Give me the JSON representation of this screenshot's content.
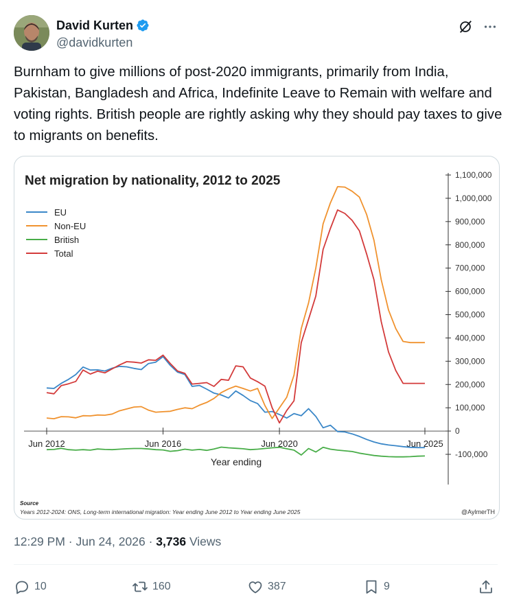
{
  "author": {
    "display_name": "David Kurten",
    "handle": "@davidkurten",
    "verified_color": "#1d9bf0"
  },
  "post": {
    "text": "Burnham to give millions of post-2020 immigrants, primarily from India, Pakistan, Bangladesh and Africa, Indefinite Leave to Remain with welfare and voting rights. British people are rightly asking why they should pay taxes to give to migrants on benefits."
  },
  "meta": {
    "time": "12:29 PM",
    "sep1": "·",
    "date": "Jun 24, 2026",
    "sep2": "·",
    "views_count": "3,736",
    "views_label": "Views"
  },
  "actions": {
    "replies": "10",
    "reposts": "160",
    "likes": "387",
    "bookmarks": "9"
  },
  "icons": [
    "verified-badge-icon",
    "grok-icon",
    "more-icon",
    "reply-icon",
    "repost-icon",
    "like-icon",
    "bookmark-icon",
    "share-icon"
  ],
  "chart_data": {
    "type": "line",
    "title": "Net migration by nationality, 2012 to 2025",
    "xlabel": "Year ending",
    "ylabel": "",
    "ylim": [
      -100000,
      1100000
    ],
    "y_ticks": [
      -100000,
      0,
      100000,
      200000,
      300000,
      400000,
      500000,
      600000,
      700000,
      800000,
      900000,
      1000000,
      1100000
    ],
    "y_tick_labels": [
      "-100,000",
      "0",
      "100,000",
      "200,000",
      "300,000",
      "400,000",
      "500,000",
      "600,000",
      "700,000",
      "800,000",
      "900,000",
      "1,000,000",
      "1,100,000"
    ],
    "x_ticks": [
      2012.5,
      2016.5,
      2020.5,
      2025.5
    ],
    "x_tick_labels": [
      "Jun 2012",
      "Jun 2016",
      "Jun 2020",
      "Jun 2025"
    ],
    "x_range": [
      2012.5,
      2025.5
    ],
    "grid": false,
    "legend_position": "top-left",
    "source_heading": "Source",
    "source_text": "Years 2012-2024: ONS, Long-term international migration: Year ending June 2012 to Year ending June 2025",
    "credit": "@AylmerTH",
    "series": [
      {
        "name": "EU",
        "color": "#3a87c8",
        "x": [
          2012.5,
          2012.75,
          2013.0,
          2013.25,
          2013.5,
          2013.75,
          2014.0,
          2014.25,
          2014.5,
          2014.75,
          2015.0,
          2015.25,
          2015.5,
          2015.75,
          2016.0,
          2016.25,
          2016.5,
          2016.75,
          2017.0,
          2017.25,
          2017.5,
          2017.75,
          2018.0,
          2018.25,
          2018.5,
          2018.75,
          2019.0,
          2019.25,
          2019.5,
          2019.75,
          2020.0,
          2020.25,
          2020.5,
          2020.75,
          2021.0,
          2021.25,
          2021.5,
          2021.75,
          2022.0,
          2022.25,
          2022.5,
          2022.75,
          2023.0,
          2023.25,
          2023.5,
          2023.75,
          2024.0,
          2024.25,
          2024.5,
          2024.75,
          2025.0,
          2025.25,
          2025.5
        ],
        "y": [
          185000,
          183000,
          205000,
          222000,
          243000,
          275000,
          262000,
          263000,
          258000,
          270000,
          278000,
          276000,
          269000,
          264000,
          290000,
          296000,
          320000,
          282000,
          253000,
          243000,
          192000,
          196000,
          180000,
          163000,
          155000,
          142000,
          172000,
          153000,
          131000,
          118000,
          81000,
          84000,
          71000,
          56000,
          75000,
          66000,
          96000,
          63000,
          14000,
          25000,
          -2000,
          -4000,
          -12000,
          -23000,
          -36000,
          -47000,
          -55000,
          -60000,
          -63000,
          -67000,
          -70000,
          -71000,
          -71000
        ]
      },
      {
        "name": "Non-EU",
        "color": "#f0922e",
        "x": [
          2012.5,
          2012.75,
          2013.0,
          2013.25,
          2013.5,
          2013.75,
          2014.0,
          2014.25,
          2014.5,
          2014.75,
          2015.0,
          2015.25,
          2015.5,
          2015.75,
          2016.0,
          2016.25,
          2016.5,
          2016.75,
          2017.0,
          2017.25,
          2017.5,
          2017.75,
          2018.0,
          2018.25,
          2018.5,
          2018.75,
          2019.0,
          2019.25,
          2019.5,
          2019.75,
          2020.0,
          2020.25,
          2020.5,
          2020.75,
          2021.0,
          2021.25,
          2021.5,
          2021.75,
          2022.0,
          2022.25,
          2022.5,
          2022.75,
          2023.0,
          2023.25,
          2023.5,
          2023.75,
          2024.0,
          2024.25,
          2024.5,
          2024.75,
          2025.0,
          2025.25,
          2025.5
        ],
        "y": [
          56000,
          53000,
          62000,
          61000,
          57000,
          66000,
          65000,
          69000,
          68000,
          73000,
          87000,
          95000,
          103000,
          105000,
          90000,
          81000,
          83000,
          85000,
          93000,
          100000,
          96000,
          111000,
          123000,
          140000,
          165000,
          181000,
          193000,
          183000,
          172000,
          183000,
          110000,
          54000,
          100000,
          145000,
          240000,
          440000,
          550000,
          700000,
          890000,
          980000,
          1050000,
          1048000,
          1030000,
          1005000,
          930000,
          820000,
          650000,
          520000,
          440000,
          385000,
          380000,
          380000,
          380000
        ]
      },
      {
        "name": "British",
        "color": "#48ad48",
        "x": [
          2012.5,
          2012.75,
          2013.0,
          2013.25,
          2013.5,
          2013.75,
          2014.0,
          2014.25,
          2014.5,
          2014.75,
          2015.0,
          2015.25,
          2015.5,
          2015.75,
          2016.0,
          2016.25,
          2016.5,
          2016.75,
          2017.0,
          2017.25,
          2017.5,
          2017.75,
          2018.0,
          2018.25,
          2018.5,
          2018.75,
          2019.0,
          2019.25,
          2019.5,
          2019.75,
          2020.0,
          2020.25,
          2020.5,
          2020.75,
          2021.0,
          2021.25,
          2021.5,
          2021.75,
          2022.0,
          2022.25,
          2022.5,
          2022.75,
          2023.0,
          2023.25,
          2023.5,
          2023.75,
          2024.0,
          2024.25,
          2024.5,
          2024.75,
          2025.0,
          2025.25,
          2025.5
        ],
        "y": [
          -80000,
          -79000,
          -74000,
          -80000,
          -82000,
          -80000,
          -82000,
          -77000,
          -79000,
          -80000,
          -78000,
          -76000,
          -75000,
          -75000,
          -77000,
          -80000,
          -81000,
          -87000,
          -84000,
          -78000,
          -82000,
          -79000,
          -83000,
          -77000,
          -69000,
          -72000,
          -74000,
          -76000,
          -80000,
          -78000,
          -75000,
          -72000,
          -70000,
          -76000,
          -82000,
          -103000,
          -75000,
          -90000,
          -70000,
          -78000,
          -82000,
          -85000,
          -88000,
          -95000,
          -100000,
          -105000,
          -108000,
          -110000,
          -111000,
          -111000,
          -110000,
          -108000,
          -107000
        ]
      },
      {
        "name": "Total",
        "color": "#d33a3a",
        "x": [
          2012.5,
          2012.75,
          2013.0,
          2013.25,
          2013.5,
          2013.75,
          2014.0,
          2014.25,
          2014.5,
          2014.75,
          2015.0,
          2015.25,
          2015.5,
          2015.75,
          2016.0,
          2016.25,
          2016.5,
          2016.75,
          2017.0,
          2017.25,
          2017.5,
          2017.75,
          2018.0,
          2018.25,
          2018.5,
          2018.75,
          2019.0,
          2019.25,
          2019.5,
          2019.75,
          2020.0,
          2020.25,
          2020.5,
          2020.75,
          2021.0,
          2021.25,
          2021.5,
          2021.75,
          2022.0,
          2022.25,
          2022.5,
          2022.75,
          2023.0,
          2023.25,
          2023.5,
          2023.75,
          2024.0,
          2024.25,
          2024.5,
          2024.75,
          2025.0,
          2025.25,
          2025.5
        ],
        "y": [
          165000,
          160000,
          195000,
          203000,
          213000,
          262000,
          245000,
          257000,
          250000,
          267000,
          284000,
          298000,
          296000,
          292000,
          306000,
          304000,
          326000,
          290000,
          258000,
          248000,
          202000,
          205000,
          208000,
          192000,
          222000,
          218000,
          280000,
          276000,
          228000,
          212000,
          193000,
          100000,
          35000,
          88000,
          130000,
          380000,
          480000,
          580000,
          780000,
          870000,
          950000,
          935000,
          905000,
          860000,
          760000,
          650000,
          470000,
          340000,
          260000,
          205000,
          205000,
          205000,
          205000
        ]
      }
    ]
  }
}
